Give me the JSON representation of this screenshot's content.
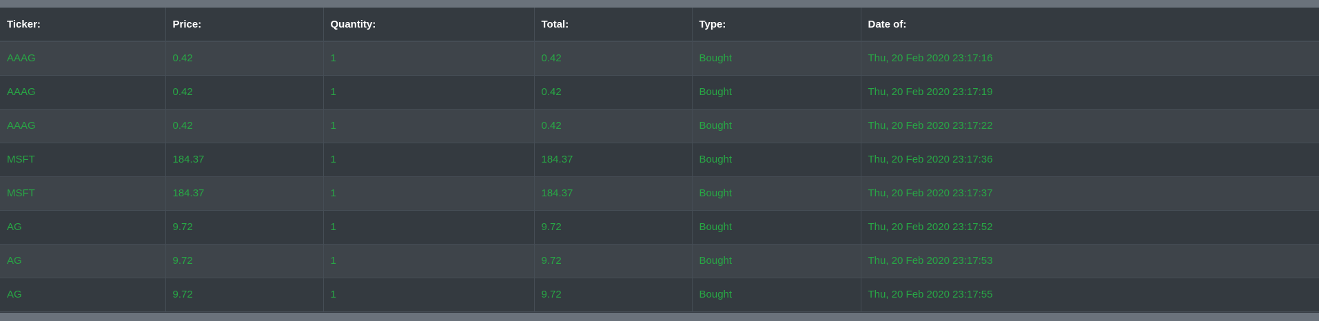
{
  "table": {
    "headers": [
      "Ticker:",
      "Price:",
      "Quantity:",
      "Total:",
      "Type:",
      "Date of:"
    ],
    "rows": [
      [
        "AAAG",
        "0.42",
        "1",
        "0.42",
        "Bought",
        "Thu, 20 Feb 2020 23:17:16"
      ],
      [
        "AAAG",
        "0.42",
        "1",
        "0.42",
        "Bought",
        "Thu, 20 Feb 2020 23:17:19"
      ],
      [
        "AAAG",
        "0.42",
        "1",
        "0.42",
        "Bought",
        "Thu, 20 Feb 2020 23:17:22"
      ],
      [
        "MSFT",
        "184.37",
        "1",
        "184.37",
        "Bought",
        "Thu, 20 Feb 2020 23:17:36"
      ],
      [
        "MSFT",
        "184.37",
        "1",
        "184.37",
        "Bought",
        "Thu, 20 Feb 2020 23:17:37"
      ],
      [
        "AG",
        "9.72",
        "1",
        "9.72",
        "Bought",
        "Thu, 20 Feb 2020 23:17:52"
      ],
      [
        "AG",
        "9.72",
        "1",
        "9.72",
        "Bought",
        "Thu, 20 Feb 2020 23:17:53"
      ],
      [
        "AG",
        "9.72",
        "1",
        "9.72",
        "Bought",
        "Thu, 20 Feb 2020 23:17:55"
      ]
    ]
  },
  "colors": {
    "page_background": "#6a727b",
    "table_background": "#343a40",
    "striped_row": "#3e444a",
    "border": "#454d55",
    "header_text": "#ffffff",
    "cell_text": "#28a745"
  }
}
